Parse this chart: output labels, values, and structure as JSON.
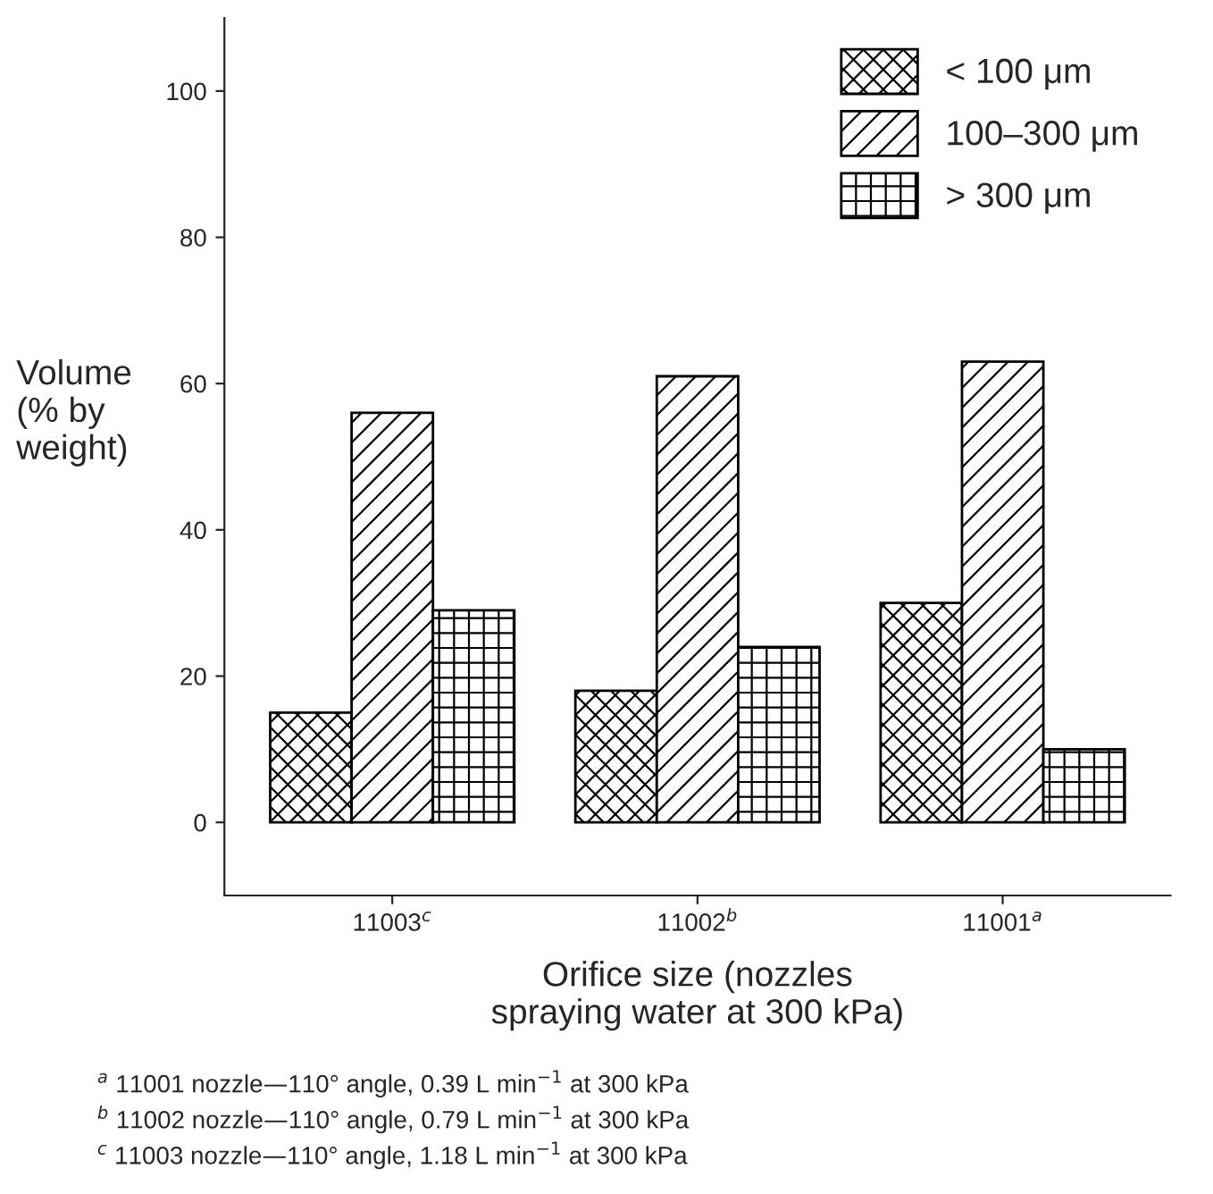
{
  "chart_data": {
    "type": "bar",
    "categories": [
      "11003$^{c}$",
      "11002$^{b}$",
      "11001$^{a}$"
    ],
    "series": [
      {
        "name": "< 100 μm",
        "color": "#000000",
        "values": [
          15,
          18,
          30
        ]
      },
      {
        "name": "100–300 μm",
        "color": "#000000",
        "values": [
          56,
          61,
          63
        ]
      },
      {
        "name": "> 300 μm",
        "color": "#000000",
        "values": [
          29,
          24,
          10
        ]
      }
    ],
    "ylabel": "Volume\n(% by\nweight)",
    "xlabel": "Orifice size (nozzles\nspraying water at 300 kPa)",
    "ylim": [
      -10,
      110
    ],
    "yticks": [
      0,
      20,
      40,
      60,
      80,
      100
    ],
    "grid": false,
    "legend": "top right",
    "annotations": [
      "$^{a}$ 11001 nozzle—110° angle, 0.39 L min$^{−1}$ at 300 kPa",
      "$^{b}$ 11002 nozzle—110° angle, 0.79 L min$^{−1}$ at 300 kPa",
      "$^{c}$ 11003 nozzle—110° angle, 1.18 L min$^{−1}$ at 300 kPa"
    ]
  }
}
